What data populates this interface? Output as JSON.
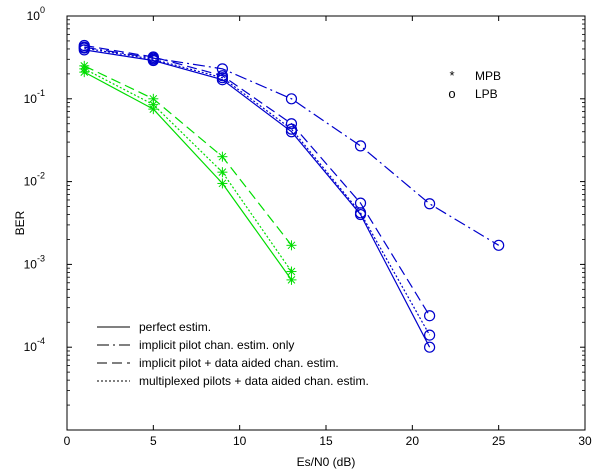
{
  "chart_data": {
    "type": "line",
    "title": "",
    "xlabel": "Es/N0 (dB)",
    "ylabel": "BER",
    "xlim": [
      0,
      30
    ],
    "xticks": [
      0,
      5,
      10,
      15,
      20,
      25,
      30
    ],
    "ylim": [
      1e-05,
      1
    ],
    "yscale": "log",
    "yticks": [
      {
        "base": "10",
        "exp": "0",
        "value": 1
      },
      {
        "base": "10",
        "exp": "-1",
        "value": 0.1
      },
      {
        "base": "10",
        "exp": "-2",
        "value": 0.01
      },
      {
        "base": "10",
        "exp": "-3",
        "value": 0.001
      },
      {
        "base": "10",
        "exp": "-4",
        "value": 0.0001
      }
    ],
    "grid": false,
    "marker_legend": [
      {
        "symbol": "*",
        "label": "MPB"
      },
      {
        "symbol": "o",
        "label": "LPB"
      }
    ],
    "line_legend": [
      {
        "style": "solid",
        "label": "perfect estim."
      },
      {
        "style": "dashdot",
        "label": "implicit pilot chan. estim. only"
      },
      {
        "style": "dashed",
        "label": "implicit pilot + data aided chan. estim."
      },
      {
        "style": "dotted",
        "label": "multiplexed pilots + data aided chan. estim."
      }
    ],
    "colors": {
      "MPB": "#00dd00",
      "LPB": "#0000cc"
    },
    "series": [
      {
        "group": "MPB",
        "style": "solid",
        "x": [
          1,
          5,
          9,
          13
        ],
        "y": [
          0.21,
          0.075,
          0.0095,
          0.00065
        ]
      },
      {
        "group": "MPB",
        "style": "dashed",
        "x": [
          1,
          5,
          9,
          13
        ],
        "y": [
          0.25,
          0.1,
          0.02,
          0.0017
        ]
      },
      {
        "group": "MPB",
        "style": "dotted",
        "x": [
          1,
          5,
          9,
          13
        ],
        "y": [
          0.23,
          0.085,
          0.013,
          0.00082
        ]
      },
      {
        "group": "LPB",
        "style": "solid",
        "x": [
          1,
          5,
          9,
          13,
          17,
          21
        ],
        "y": [
          0.39,
          0.29,
          0.17,
          0.04,
          0.004,
          0.0001
        ]
      },
      {
        "group": "LPB",
        "style": "dashdot",
        "x": [
          1,
          5,
          9,
          13,
          17,
          21,
          25
        ],
        "y": [
          0.42,
          0.31,
          0.23,
          0.1,
          0.027,
          0.0054,
          0.0017
        ]
      },
      {
        "group": "LPB",
        "style": "dashed",
        "x": [
          1,
          5,
          9,
          13,
          17,
          21
        ],
        "y": [
          0.44,
          0.32,
          0.19,
          0.05,
          0.0055,
          0.00024
        ]
      },
      {
        "group": "LPB",
        "style": "dotted",
        "x": [
          1,
          5,
          9,
          13,
          17,
          21
        ],
        "y": [
          0.41,
          0.3,
          0.18,
          0.043,
          0.0042,
          0.00014
        ]
      }
    ]
  }
}
